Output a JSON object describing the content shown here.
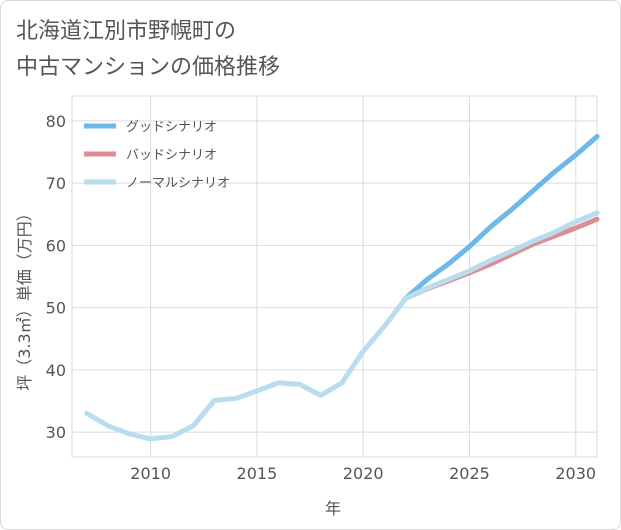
{
  "title": "北海道江別市野幌町の\n中古マンションの価格推移",
  "chart_data": {
    "type": "line",
    "title": "北海道江別市野幌町の中古マンションの価格推移",
    "xlabel": "年",
    "ylabel": "坪（3.3㎡）単価（万円）",
    "xlim": [
      2006.3,
      2031
    ],
    "ylim": [
      26,
      84
    ],
    "x_ticks": [
      2010,
      2015,
      2020,
      2025,
      2030
    ],
    "y_ticks": [
      30,
      40,
      50,
      60,
      70,
      80
    ],
    "grid": true,
    "legend_position": "top-left",
    "series": [
      {
        "name": "グッドシナリオ",
        "color": "#6cb8e8",
        "x": [
          2022,
          2023,
          2024,
          2025,
          2026,
          2027,
          2028,
          2029,
          2030,
          2031
        ],
        "y": [
          51.5,
          54.5,
          57.0,
          59.8,
          63.0,
          65.8,
          68.8,
          71.8,
          74.5,
          77.5
        ]
      },
      {
        "name": "バッドシナリオ",
        "color": "#dc8e94",
        "x": [
          2022,
          2023,
          2024,
          2025,
          2026,
          2027,
          2028,
          2029,
          2030,
          2031
        ],
        "y": [
          51.5,
          53.0,
          54.3,
          55.6,
          57.0,
          58.6,
          60.2,
          61.5,
          62.8,
          64.2
        ]
      },
      {
        "name": "ノーマルシナリオ",
        "color": "#b9dcee",
        "x": [
          2007,
          2008,
          2009,
          2010,
          2011,
          2012,
          2013,
          2014,
          2015,
          2016,
          2017,
          2018,
          2019,
          2020,
          2021,
          2022,
          2023,
          2024,
          2025,
          2026,
          2027,
          2028,
          2029,
          2030,
          2031
        ],
        "y": [
          33.0,
          31.0,
          29.7,
          28.9,
          29.3,
          31.0,
          35.1,
          35.4,
          36.6,
          37.9,
          37.7,
          35.9,
          37.9,
          43.0,
          47.0,
          51.5,
          53.1,
          54.5,
          55.9,
          57.6,
          59.1,
          60.7,
          62.1,
          63.8,
          65.2
        ]
      }
    ]
  }
}
